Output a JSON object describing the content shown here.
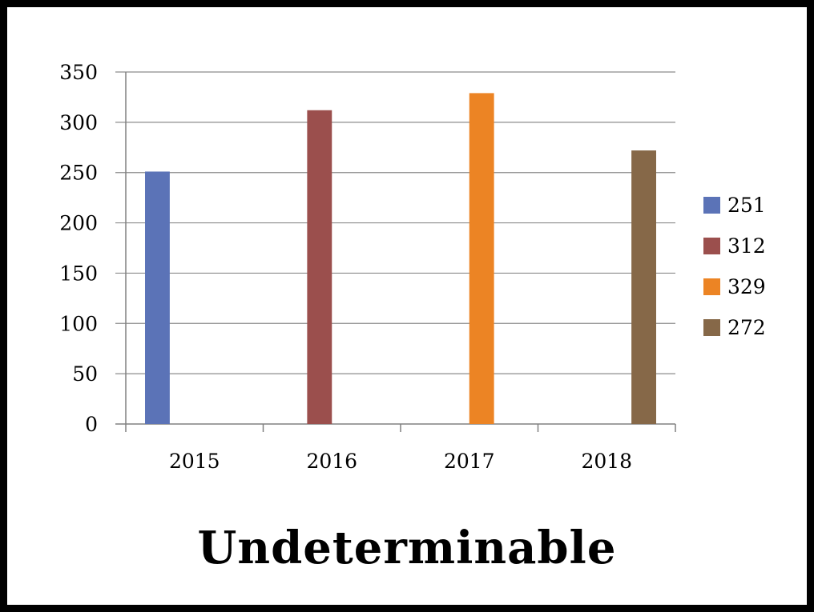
{
  "caption": "Undeterminable",
  "chart_data": {
    "type": "bar",
    "categories": [
      "2015",
      "2016",
      "2017",
      "2018"
    ],
    "series": [
      {
        "name": "251",
        "values": [
          251,
          null,
          null,
          null
        ],
        "color": "#5B73B7"
      },
      {
        "name": "312",
        "values": [
          null,
          312,
          null,
          null
        ],
        "color": "#9B4F4D"
      },
      {
        "name": "329",
        "values": [
          null,
          null,
          329,
          null
        ],
        "color": "#EC8424"
      },
      {
        "name": "272",
        "values": [
          null,
          null,
          null,
          272
        ],
        "color": "#866848"
      }
    ],
    "ylim": [
      0,
      350
    ],
    "yticks": [
      0,
      50,
      100,
      150,
      200,
      250,
      300,
      350
    ],
    "title": "",
    "xlabel": "",
    "ylabel": "",
    "grid": true,
    "legend_position": "right"
  }
}
